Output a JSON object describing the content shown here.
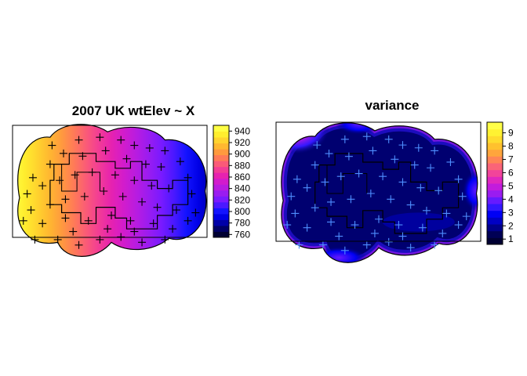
{
  "chart_data": [
    {
      "type": "heatmap",
      "title": "2007  UK wtElev ~ X",
      "xlabel": "",
      "ylabel": "",
      "colorbar": {
        "ticks": [
          "940",
          "920",
          "900",
          "880",
          "860",
          "840",
          "820",
          "800",
          "780",
          "760"
        ],
        "range": [
          755,
          950
        ],
        "colors": [
          "#000033",
          "#000066",
          "#0000A8",
          "#0000E6",
          "#1414FF",
          "#4B18FF",
          "#7A1AFF",
          "#9A1CF0",
          "#B81CE0",
          "#D21CCC",
          "#E622B0",
          "#F23C96",
          "#FA5A78",
          "#FF7A58",
          "#FF9A3E",
          "#FFB830",
          "#FFD42E",
          "#FFEE2E",
          "#FFFF44"
        ]
      },
      "gradient_direction": "west-high-to-east-low",
      "points_marker": "+",
      "points_color": "#000000"
    },
    {
      "type": "heatmap",
      "title": "variance",
      "xlabel": "",
      "ylabel": "",
      "colorbar": {
        "ticks": [
          "9",
          "8",
          "7",
          "6",
          "5",
          "4",
          "3",
          "2",
          "1"
        ],
        "range": [
          0.6,
          9.8
        ],
        "colors": [
          "#000033",
          "#000055",
          "#00008A",
          "#0000C4",
          "#0000F5",
          "#3318FF",
          "#661AFF",
          "#9A1CF0",
          "#C21CDC",
          "#E028BE",
          "#F2449A",
          "#FA6478",
          "#FF8556",
          "#FFA53C",
          "#FFC12E",
          "#FFDC2E",
          "#FFF232",
          "#FFFF48"
        ]
      },
      "background_color": "#000070",
      "points_marker": "+",
      "points_color": "#4F8FFF"
    }
  ]
}
